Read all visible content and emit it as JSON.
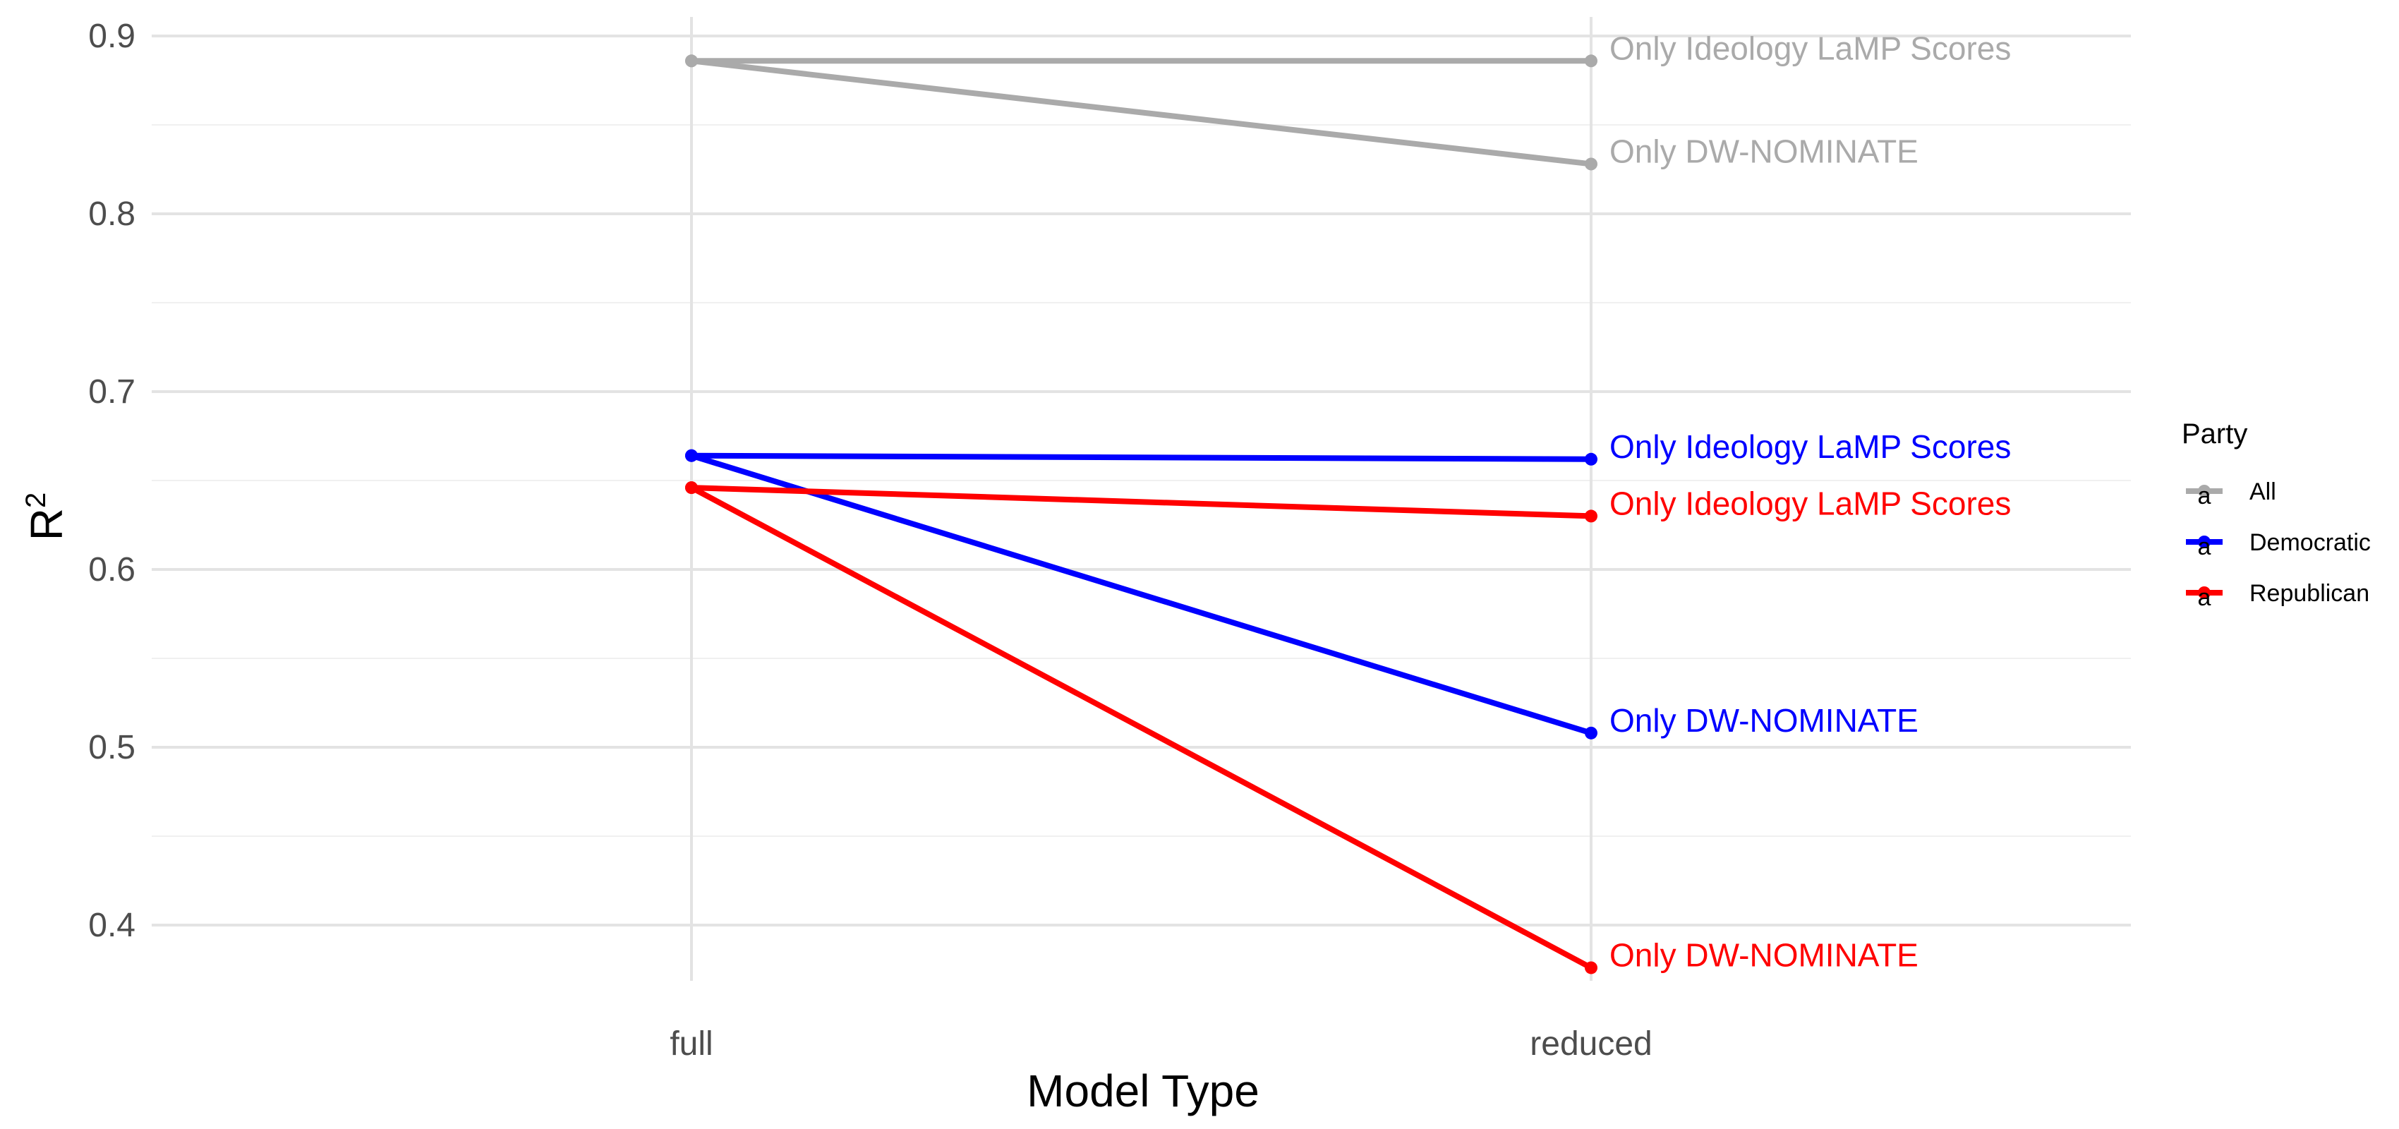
{
  "chart_data": {
    "type": "line",
    "categories": [
      "full",
      "reduced"
    ],
    "xlabel": "Model Type",
    "ylabel": "R",
    "ylabel_superscript": "2",
    "ylim": [
      0.35,
      0.92
    ],
    "y_ticks": [
      0.4,
      0.5,
      0.6,
      0.7,
      0.8,
      0.9
    ],
    "grid": true,
    "legend": {
      "title": "Party",
      "position": "right",
      "glyph": "a",
      "entries": [
        {
          "label": "All",
          "color": "#aaaaaa"
        },
        {
          "label": "Democratic",
          "color": "#0000ff"
        },
        {
          "label": "Republican",
          "color": "#ff0000"
        }
      ]
    },
    "series": [
      {
        "party": "All",
        "label": "Only Ideology LaMP Scores",
        "color": "#aaaaaa",
        "values": [
          0.886,
          0.886
        ]
      },
      {
        "party": "All",
        "label": "Only DW-NOMINATE",
        "color": "#aaaaaa",
        "values": [
          0.886,
          0.828
        ]
      },
      {
        "party": "Democratic",
        "label": "Only Ideology LaMP Scores",
        "color": "#0000ff",
        "values": [
          0.664,
          0.662
        ]
      },
      {
        "party": "Democratic",
        "label": "Only DW-NOMINATE",
        "color": "#0000ff",
        "values": [
          0.664,
          0.508
        ]
      },
      {
        "party": "Republican",
        "label": "Only Ideology LaMP Scores",
        "color": "#ff0000",
        "values": [
          0.646,
          0.63
        ]
      },
      {
        "party": "Republican",
        "label": "Only DW-NOMINATE",
        "color": "#ff0000",
        "values": [
          0.646,
          0.376
        ]
      }
    ]
  }
}
